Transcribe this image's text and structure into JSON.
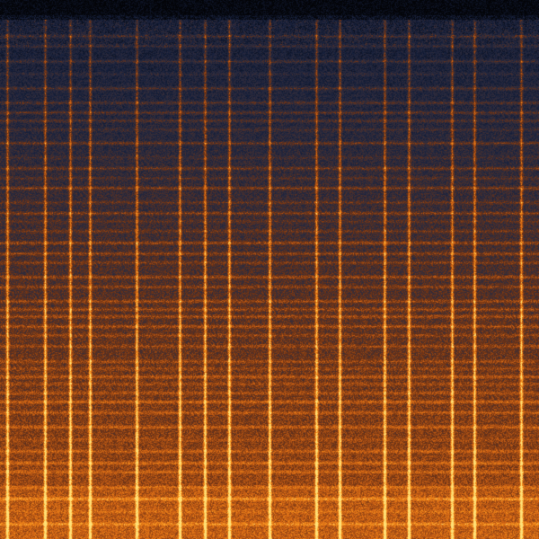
{
  "colors": {
    "top": "#05070c",
    "blue": "#1c2a4a",
    "dark_mid": "#3a2418",
    "orange": "#e0701a",
    "bright": "#ffd060"
  }
}
